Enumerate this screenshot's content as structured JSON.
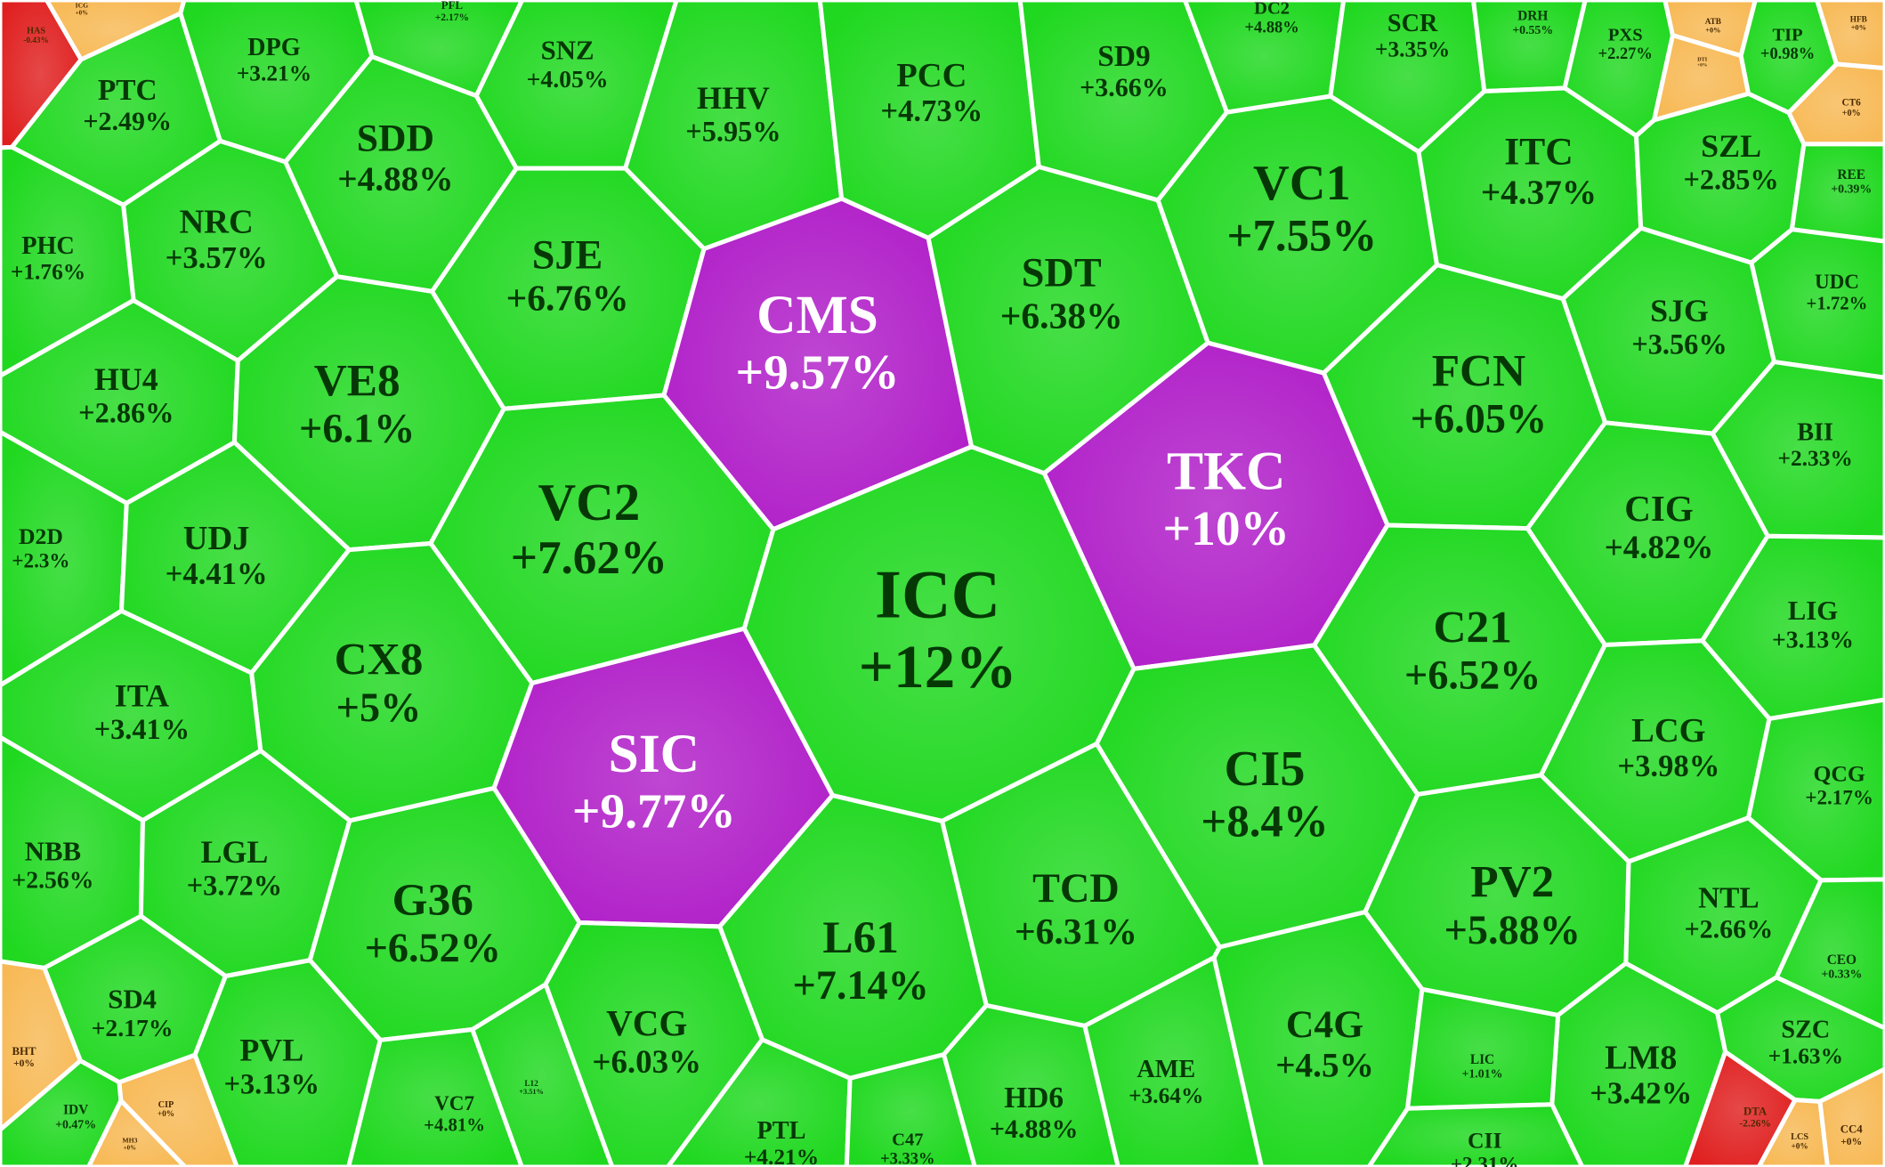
{
  "chart_data": {
    "type": "voronoi-treemap",
    "categories": [
      "HAS",
      "ICG",
      "PFL",
      "DPG",
      "SNZ",
      "HHV",
      "PCC",
      "SD9",
      "DC2",
      "SCR",
      "DRH",
      "PXS",
      "ATB",
      "DTI",
      "TIP",
      "HFB",
      "CT6",
      "PTC",
      "SDD",
      "NRC",
      "PHC",
      "SJE",
      "CMS",
      "SDT",
      "VC1",
      "ITC",
      "SZL",
      "REE",
      "UDC",
      "SJG",
      "HU4",
      "VE8",
      "FCN",
      "TKC",
      "BII",
      "D2D",
      "UDJ",
      "VC2",
      "ICC",
      "CIG",
      "LIG",
      "CX8",
      "ITA",
      "C21",
      "SIC",
      "CI5",
      "LCG",
      "QCG",
      "NBB",
      "LGL",
      "G36",
      "TCD",
      "PV2",
      "NTL",
      "L61",
      "SD4",
      "PVL",
      "VCG",
      "AME",
      "C4G",
      "SZC",
      "LM8",
      "CEO",
      "LIC",
      "VC7",
      "L12",
      "HD6",
      "BHT",
      "IDV",
      "CIP",
      "MH3",
      "PTL",
      "C47",
      "CII",
      "DTA",
      "LCS",
      "CC4"
    ],
    "values": [
      -0.43,
      0,
      2.17,
      3.21,
      4.05,
      5.95,
      4.73,
      3.66,
      4.88,
      3.35,
      0.55,
      2.27,
      0,
      0,
      0.98,
      0,
      0,
      2.49,
      4.88,
      3.57,
      1.76,
      6.76,
      9.57,
      6.38,
      7.55,
      4.37,
      2.85,
      0.39,
      1.72,
      3.56,
      2.86,
      6.1,
      6.05,
      10,
      2.33,
      2.3,
      4.41,
      7.62,
      12,
      4.82,
      3.13,
      5,
      3.41,
      6.52,
      9.77,
      8.4,
      3.98,
      2.17,
      2.56,
      3.72,
      6.52,
      6.31,
      5.88,
      2.66,
      7.14,
      2.17,
      3.13,
      6.03,
      3.64,
      4.5,
      1.63,
      3.42,
      0.33,
      1.01,
      4.81,
      3.51,
      4.88,
      0,
      0.47,
      0,
      0,
      4.21,
      3.33,
      2.31,
      -2.26,
      0,
      0
    ],
    "value_labels": [
      "-0.43%",
      "+0%",
      "+2.17%",
      "+3.21%",
      "+4.05%",
      "+5.95%",
      "+4.73%",
      "+3.66%",
      "+4.88%",
      "+3.35%",
      "+0.55%",
      "+2.27%",
      "+0%",
      "+0%",
      "+0.98%",
      "+0%",
      "+0%",
      "+2.49%",
      "+4.88%",
      "+3.57%",
      "+1.76%",
      "+6.76%",
      "+9.57%",
      "+6.38%",
      "+7.55%",
      "+4.37%",
      "+2.85%",
      "+0.39%",
      "+1.72%",
      "+3.56%",
      "+2.86%",
      "+6.1%",
      "+6.05%",
      "+10%",
      "+2.33%",
      "+2.3%",
      "+4.41%",
      "+7.62%",
      "+12%",
      "+4.82%",
      "+3.13%",
      "+5%",
      "+3.41%",
      "+6.52%",
      "+9.77%",
      "+8.4%",
      "+3.98%",
      "+2.17%",
      "+2.56%",
      "+3.72%",
      "+6.52%",
      "+6.31%",
      "+5.88%",
      "+2.66%",
      "+7.14%",
      "+2.17%",
      "+3.13%",
      "+6.03%",
      "+3.64%",
      "+4.5%",
      "+1.63%",
      "+3.42%",
      "+0.33%",
      "+1.01%",
      "+4.81%",
      "+3.51%",
      "+4.88%",
      "+0%",
      "+0.47%",
      "+0%",
      "+0%",
      "+4.21%",
      "+3.33%",
      "+2.31%",
      "-2.26%",
      "+0%",
      "+0%"
    ],
    "colors": [
      "#e02020",
      "#f7b955",
      "#1fd81f",
      "#1fd81f",
      "#1fd81f",
      "#1fd81f",
      "#1fd81f",
      "#1fd81f",
      "#1fd81f",
      "#1fd81f",
      "#1fd81f",
      "#1fd81f",
      "#f7b955",
      "#f7b955",
      "#1fd81f",
      "#f7b955",
      "#f7b955",
      "#1fd81f",
      "#1fd81f",
      "#1fd81f",
      "#1fd81f",
      "#1fd81f",
      "#b01ec8",
      "#1fd81f",
      "#1fd81f",
      "#1fd81f",
      "#1fd81f",
      "#1fd81f",
      "#1fd81f",
      "#1fd81f",
      "#1fd81f",
      "#1fd81f",
      "#1fd81f",
      "#b01ec8",
      "#1fd81f",
      "#1fd81f",
      "#1fd81f",
      "#1fd81f",
      "#1fd81f",
      "#1fd81f",
      "#1fd81f",
      "#1fd81f",
      "#1fd81f",
      "#1fd81f",
      "#b01ec8",
      "#1fd81f",
      "#1fd81f",
      "#1fd81f",
      "#1fd81f",
      "#1fd81f",
      "#1fd81f",
      "#1fd81f",
      "#1fd81f",
      "#1fd81f",
      "#1fd81f",
      "#1fd81f",
      "#1fd81f",
      "#1fd81f",
      "#1fd81f",
      "#1fd81f",
      "#1fd81f",
      "#1fd81f",
      "#1fd81f",
      "#1fd81f",
      "#1fd81f",
      "#1fd81f",
      "#1fd81f",
      "#f7b955",
      "#1fd81f",
      "#f7b955",
      "#f7b955",
      "#1fd81f",
      "#1fd81f",
      "#1fd81f",
      "#e02020",
      "#f7b955",
      "#f7b955"
    ]
  }
}
